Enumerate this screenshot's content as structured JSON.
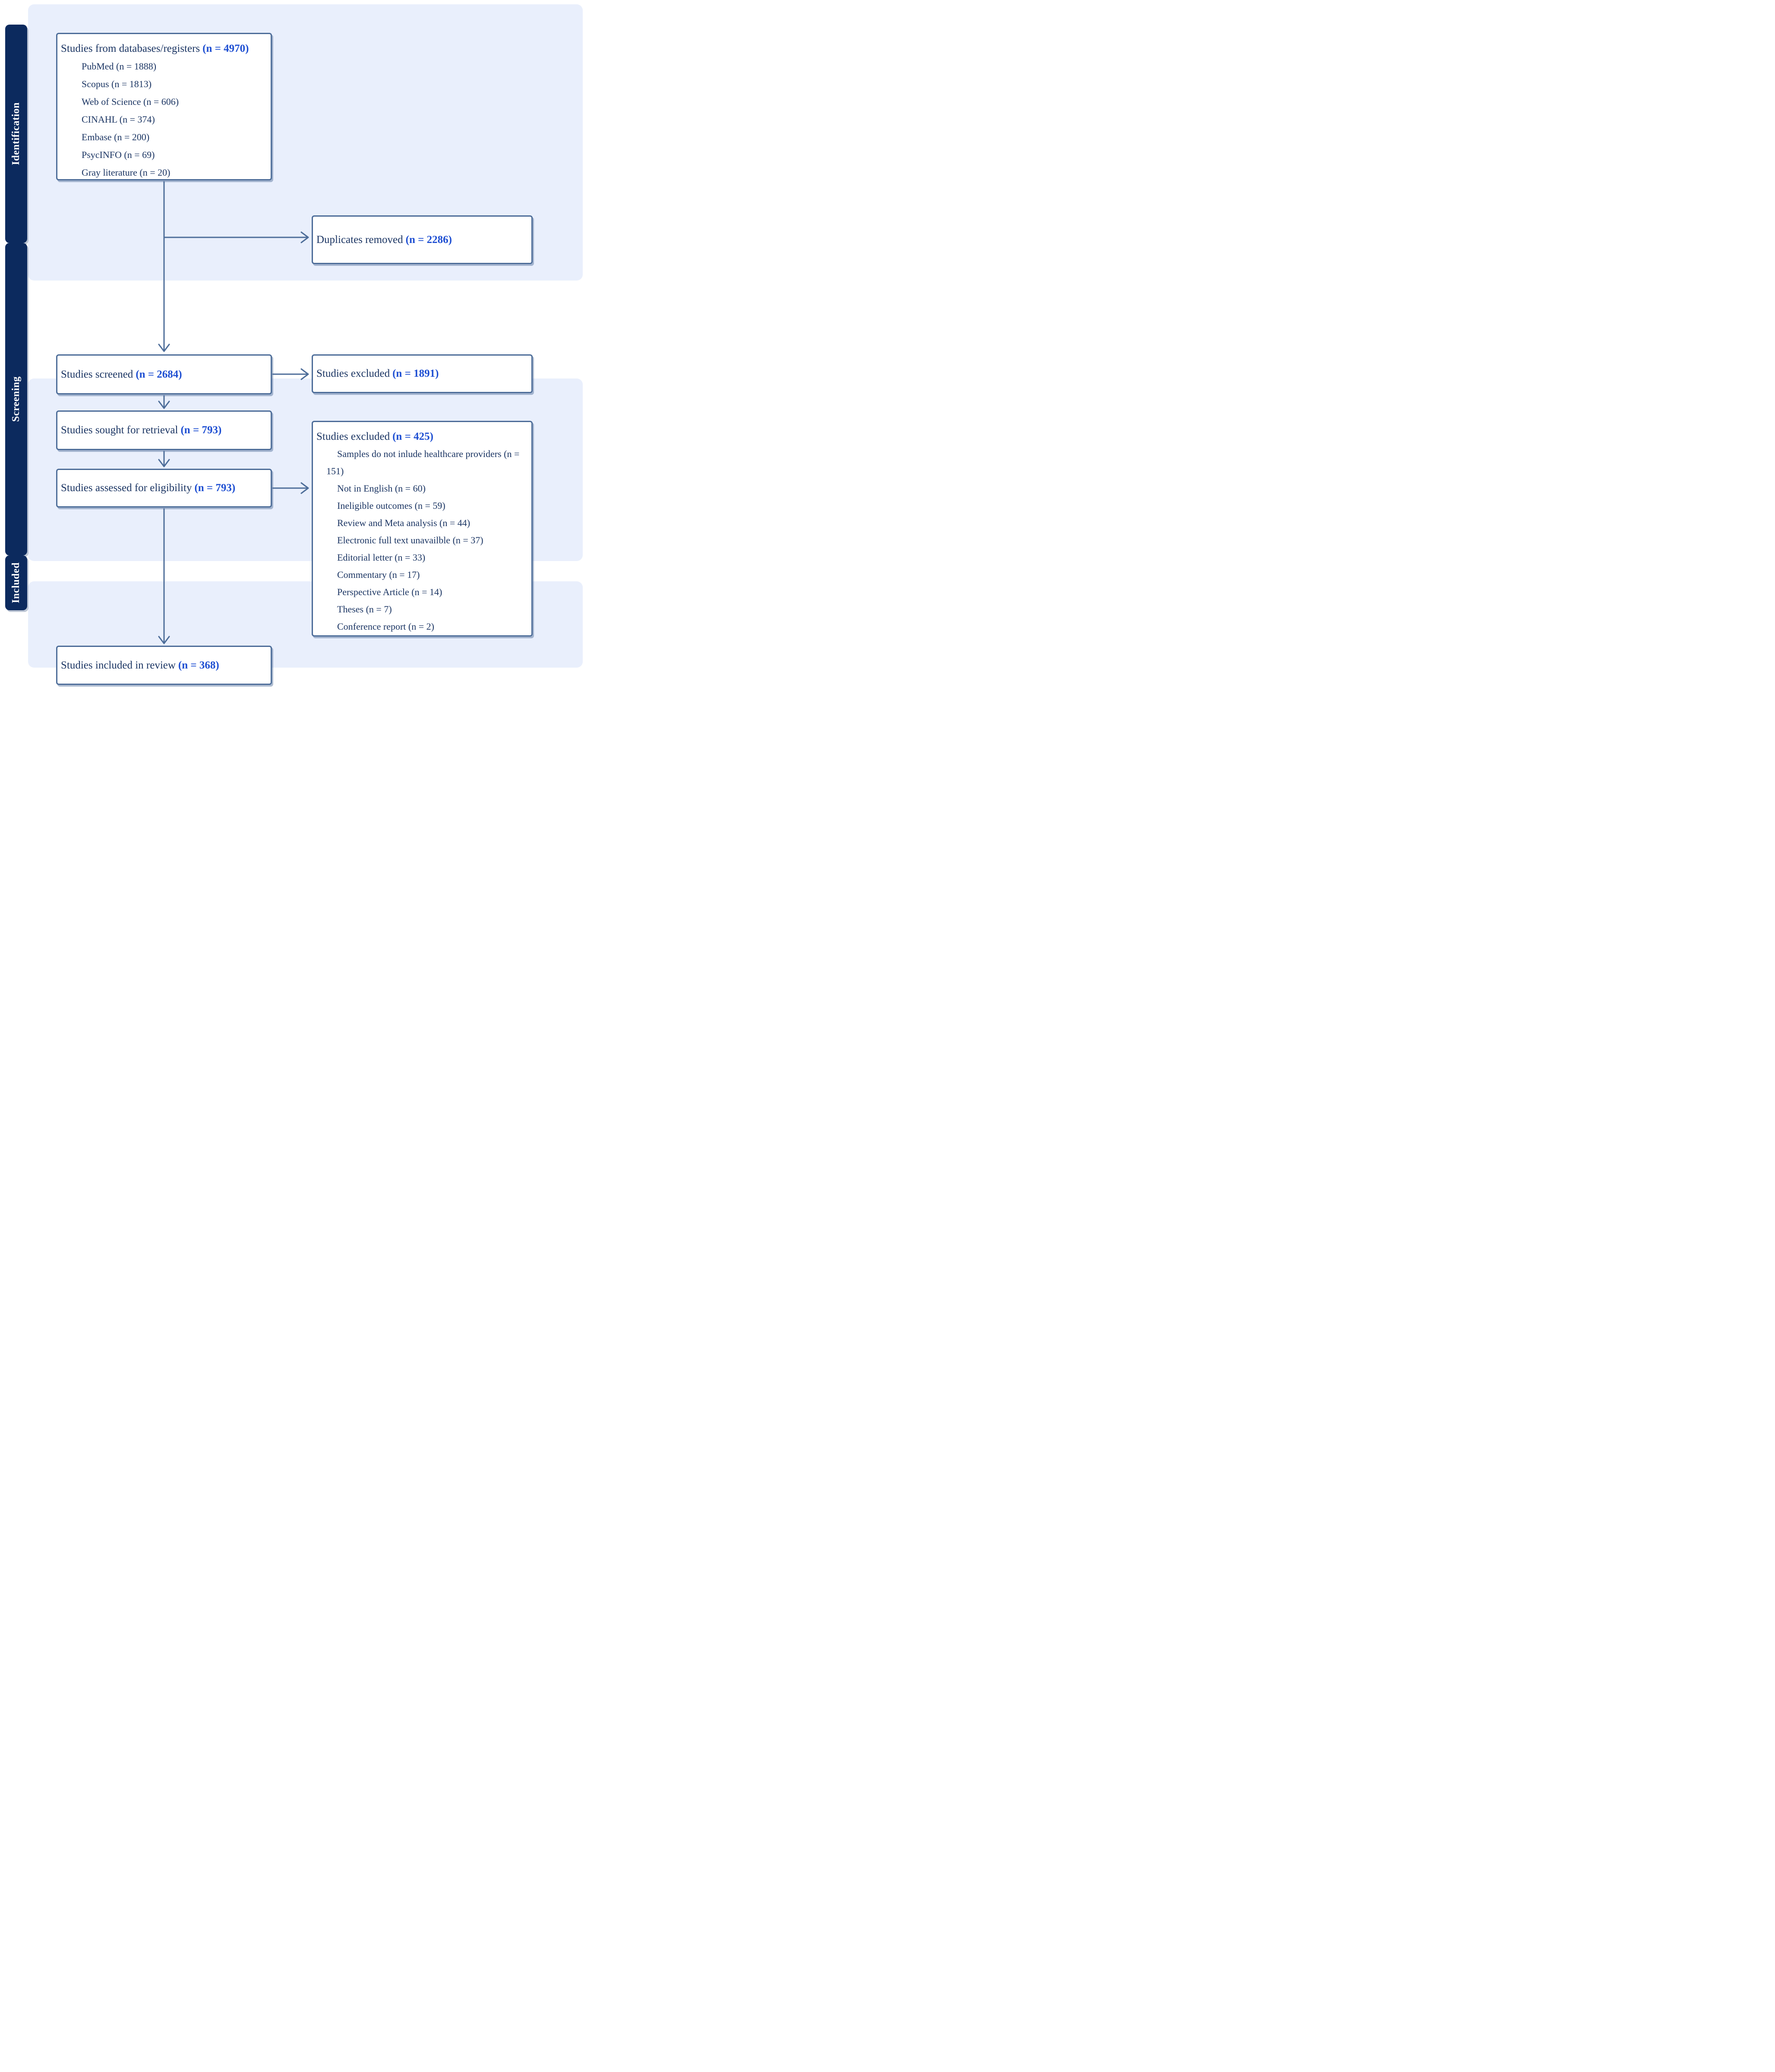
{
  "sidebar": {
    "stages": [
      {
        "label": "Identification"
      },
      {
        "label": "Screening"
      },
      {
        "label": "Included"
      }
    ]
  },
  "boxes": {
    "databases": {
      "title": "Studies from databases/registers",
      "n": "(n = 4970)",
      "items": [
        "PubMed (n = 1888)",
        "Scopus (n = 1813)",
        "Web of Science (n = 606)",
        "CINAHL (n = 374)",
        "Embase (n = 200)",
        "PsycINFO (n = 69)",
        "Gray literature (n = 20)"
      ]
    },
    "duplicates": {
      "title": "Duplicates removed",
      "n": "(n = 2286)"
    },
    "screened": {
      "title": "Studies screened",
      "n": "(n = 2684)"
    },
    "excluded_screening": {
      "title": "Studies excluded",
      "n": "(n = 1891)"
    },
    "sought": {
      "title": "Studies sought for retrieval",
      "n": "(n = 793)"
    },
    "assessed": {
      "title": "Studies assessed for eligibility",
      "n": "(n = 793)"
    },
    "excluded_eligibility": {
      "title": "Studies excluded",
      "n": "(n = 425)",
      "items": [
        "Samples do not inlude healthcare providers (n = 151)",
        "Not in English (n = 60)",
        "Ineligible outcomes (n = 59)",
        "Review and Meta analysis (n = 44)",
        "Electronic full text unavailble (n = 37)",
        "Editorial letter (n = 33)",
        "Commentary (n = 17)",
        "Perspective Article (n = 14)",
        "Theses (n = 7)",
        "Conference report (n = 2)"
      ]
    },
    "included": {
      "title": "Studies included in review",
      "n": "(n = 368)"
    }
  },
  "colors": {
    "accent_blue": "#1d4ed2",
    "navy_text": "#1b3563",
    "sidebar_navy": "#0c2a5e",
    "border_slate": "#4d6d99",
    "band_blue": "#e9effc"
  }
}
